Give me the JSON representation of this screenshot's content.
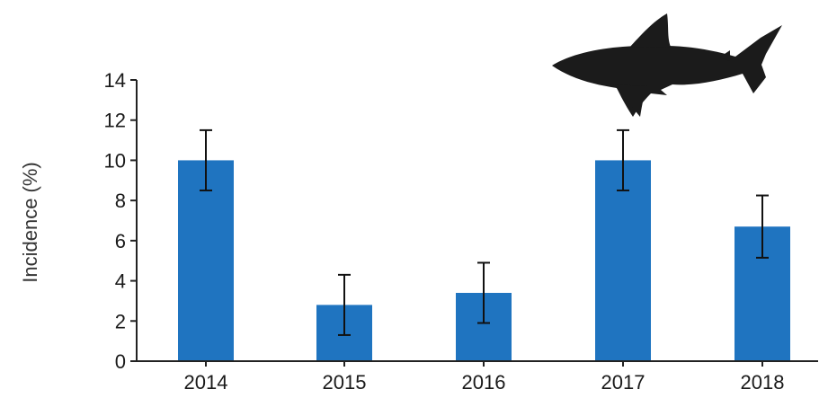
{
  "chart_data": {
    "type": "bar",
    "categories": [
      "2014",
      "2015",
      "2016",
      "2017",
      "2018"
    ],
    "values": [
      10.0,
      2.8,
      3.4,
      10.0,
      6.7
    ],
    "error": [
      1.5,
      1.5,
      1.5,
      1.5,
      1.55
    ],
    "title": "",
    "xlabel": "",
    "ylabel": "Incidence (%)",
    "ylim": [
      0,
      14
    ],
    "yticks": [
      0,
      2,
      4,
      6,
      8,
      10,
      12,
      14
    ],
    "grid": false,
    "legend": "none",
    "bar_color": "#1f74c0",
    "icon": "shark-silhouette"
  }
}
